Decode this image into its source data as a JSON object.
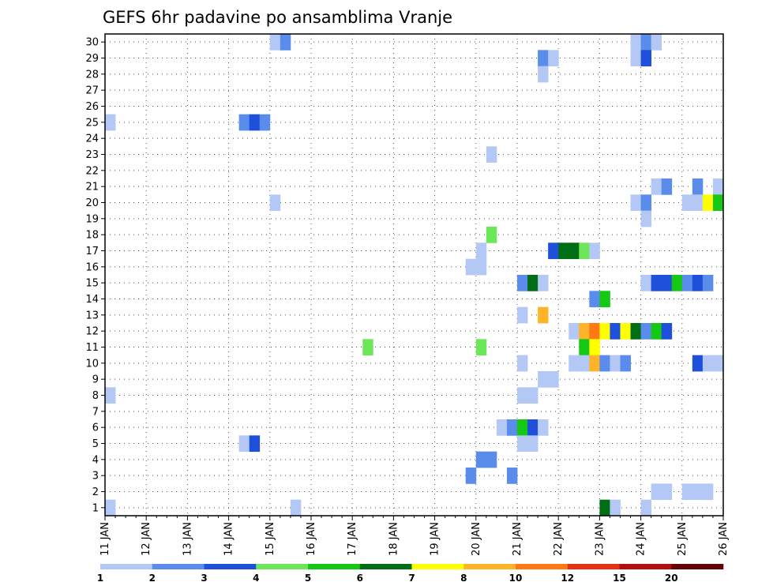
{
  "chart_data": {
    "type": "heatmap",
    "title": "GEFS 6hr padavine po ansamblima Vranje",
    "xlabel": "",
    "ylabel": "",
    "x_start_day": 11,
    "x_end_day": 26,
    "x_step_hours": 6,
    "x_ticks": [
      "11 JAN",
      "12 JAN",
      "13 JAN",
      "14 JAN",
      "15 JAN",
      "16 JAN",
      "17 JAN",
      "18 JAN",
      "19 JAN",
      "20 JAN",
      "21 JAN",
      "22 JAN",
      "23 JAN",
      "24 JAN",
      "25 JAN",
      "26 JAN"
    ],
    "y_ticks": [
      "1",
      "2",
      "3",
      "4",
      "5",
      "6",
      "7",
      "8",
      "9",
      "10",
      "11",
      "12",
      "13",
      "14",
      "15",
      "16",
      "17",
      "18",
      "19",
      "20",
      "21",
      "22",
      "23",
      "24",
      "25",
      "26",
      "27",
      "28",
      "29",
      "30"
    ],
    "ylim": [
      1,
      30
    ],
    "colorbar": {
      "labels": [
        "1",
        "2",
        "3",
        "4",
        "5",
        "6",
        "7",
        "8",
        "10",
        "12",
        "15",
        "20"
      ],
      "colors": [
        "#b4c8f5",
        "#5a8ceb",
        "#1e50dc",
        "#6ee65a",
        "#14c814",
        "#006e14",
        "#ffff00",
        "#ffb428",
        "#ff7814",
        "#e63214",
        "#b40f0f",
        "#640505"
      ]
    },
    "cells": [
      {
        "member": 30,
        "step": 16,
        "level": 1
      },
      {
        "member": 30,
        "step": 17,
        "level": 2
      },
      {
        "member": 30,
        "step": 51,
        "level": 1
      },
      {
        "member": 30,
        "step": 52,
        "level": 2
      },
      {
        "member": 30,
        "step": 53,
        "level": 1
      },
      {
        "member": 29,
        "step": 51,
        "level": 1
      },
      {
        "member": 29,
        "step": 52,
        "level": 3
      },
      {
        "member": 29,
        "step": 42,
        "level": 2
      },
      {
        "member": 29,
        "step": 43,
        "level": 1
      },
      {
        "member": 28,
        "step": 42,
        "level": 1
      },
      {
        "member": 25,
        "step": 0,
        "level": 1
      },
      {
        "member": 25,
        "step": 13,
        "level": 2
      },
      {
        "member": 25,
        "step": 14,
        "level": 3
      },
      {
        "member": 25,
        "step": 15,
        "level": 2
      },
      {
        "member": 23,
        "step": 37,
        "level": 1
      },
      {
        "member": 21,
        "step": 53,
        "level": 1
      },
      {
        "member": 21,
        "step": 54,
        "level": 2
      },
      {
        "member": 21,
        "step": 57,
        "level": 2
      },
      {
        "member": 21,
        "step": 59,
        "level": 1
      },
      {
        "member": 20,
        "step": 16,
        "level": 1
      },
      {
        "member": 20,
        "step": 51,
        "level": 1
      },
      {
        "member": 20,
        "step": 52,
        "level": 2
      },
      {
        "member": 20,
        "step": 56,
        "level": 1
      },
      {
        "member": 20,
        "step": 57,
        "level": 1
      },
      {
        "member": 20,
        "step": 58,
        "level": 7
      },
      {
        "member": 20,
        "step": 59,
        "level": 5
      },
      {
        "member": 19,
        "step": 52,
        "level": 1
      },
      {
        "member": 18,
        "step": 37,
        "level": 4
      },
      {
        "member": 17,
        "step": 36,
        "level": 1
      },
      {
        "member": 17,
        "step": 43,
        "level": 3
      },
      {
        "member": 17,
        "step": 44,
        "level": 6
      },
      {
        "member": 17,
        "step": 45,
        "level": 6
      },
      {
        "member": 17,
        "step": 46,
        "level": 4
      },
      {
        "member": 17,
        "step": 47,
        "level": 1
      },
      {
        "member": 16,
        "step": 35,
        "level": 1
      },
      {
        "member": 16,
        "step": 36,
        "level": 1
      },
      {
        "member": 15,
        "step": 40,
        "level": 2
      },
      {
        "member": 15,
        "step": 41,
        "level": 6
      },
      {
        "member": 15,
        "step": 42,
        "level": 1
      },
      {
        "member": 15,
        "step": 52,
        "level": 1
      },
      {
        "member": 15,
        "step": 53,
        "level": 3
      },
      {
        "member": 15,
        "step": 54,
        "level": 3
      },
      {
        "member": 15,
        "step": 55,
        "level": 5
      },
      {
        "member": 15,
        "step": 56,
        "level": 2
      },
      {
        "member": 15,
        "step": 57,
        "level": 3
      },
      {
        "member": 15,
        "step": 58,
        "level": 2
      },
      {
        "member": 14,
        "step": 47,
        "level": 2
      },
      {
        "member": 14,
        "step": 48,
        "level": 5
      },
      {
        "member": 13,
        "step": 40,
        "level": 1
      },
      {
        "member": 13,
        "step": 42,
        "level": 8
      },
      {
        "member": 12,
        "step": 45,
        "level": 1
      },
      {
        "member": 12,
        "step": 46,
        "level": 8
      },
      {
        "member": 12,
        "step": 47,
        "level": 9
      },
      {
        "member": 12,
        "step": 48,
        "level": 7
      },
      {
        "member": 12,
        "step": 49,
        "level": 3
      },
      {
        "member": 12,
        "step": 50,
        "level": 7
      },
      {
        "member": 12,
        "step": 51,
        "level": 6
      },
      {
        "member": 12,
        "step": 52,
        "level": 2
      },
      {
        "member": 12,
        "step": 53,
        "level": 5
      },
      {
        "member": 12,
        "step": 54,
        "level": 3
      },
      {
        "member": 11,
        "step": 25,
        "level": 4
      },
      {
        "member": 11,
        "step": 36,
        "level": 4
      },
      {
        "member": 11,
        "step": 46,
        "level": 5
      },
      {
        "member": 11,
        "step": 47,
        "level": 7
      },
      {
        "member": 10,
        "step": 40,
        "level": 1
      },
      {
        "member": 10,
        "step": 45,
        "level": 1
      },
      {
        "member": 10,
        "step": 46,
        "level": 1
      },
      {
        "member": 10,
        "step": 47,
        "level": 8
      },
      {
        "member": 10,
        "step": 48,
        "level": 2
      },
      {
        "member": 10,
        "step": 49,
        "level": 1
      },
      {
        "member": 10,
        "step": 50,
        "level": 2
      },
      {
        "member": 10,
        "step": 57,
        "level": 3
      },
      {
        "member": 10,
        "step": 58,
        "level": 1
      },
      {
        "member": 10,
        "step": 59,
        "level": 1
      },
      {
        "member": 9,
        "step": 42,
        "level": 1
      },
      {
        "member": 9,
        "step": 43,
        "level": 1
      },
      {
        "member": 8,
        "step": 0,
        "level": 1
      },
      {
        "member": 8,
        "step": 40,
        "level": 1
      },
      {
        "member": 8,
        "step": 41,
        "level": 1
      },
      {
        "member": 6,
        "step": 38,
        "level": 1
      },
      {
        "member": 6,
        "step": 39,
        "level": 2
      },
      {
        "member": 6,
        "step": 40,
        "level": 5
      },
      {
        "member": 6,
        "step": 41,
        "level": 3
      },
      {
        "member": 6,
        "step": 42,
        "level": 1
      },
      {
        "member": 5,
        "step": 13,
        "level": 1
      },
      {
        "member": 5,
        "step": 14,
        "level": 3
      },
      {
        "member": 5,
        "step": 40,
        "level": 1
      },
      {
        "member": 5,
        "step": 41,
        "level": 1
      },
      {
        "member": 4,
        "step": 36,
        "level": 2
      },
      {
        "member": 4,
        "step": 37,
        "level": 2
      },
      {
        "member": 3,
        "step": 35,
        "level": 2
      },
      {
        "member": 3,
        "step": 39,
        "level": 2
      },
      {
        "member": 2,
        "step": 53,
        "level": 1
      },
      {
        "member": 2,
        "step": 54,
        "level": 1
      },
      {
        "member": 2,
        "step": 56,
        "level": 1
      },
      {
        "member": 2,
        "step": 57,
        "level": 1
      },
      {
        "member": 2,
        "step": 58,
        "level": 1
      },
      {
        "member": 1,
        "step": 0,
        "level": 1
      },
      {
        "member": 1,
        "step": 18,
        "level": 1
      },
      {
        "member": 1,
        "step": 48,
        "level": 6
      },
      {
        "member": 1,
        "step": 49,
        "level": 1
      },
      {
        "member": 1,
        "step": 52,
        "level": 1
      }
    ]
  }
}
